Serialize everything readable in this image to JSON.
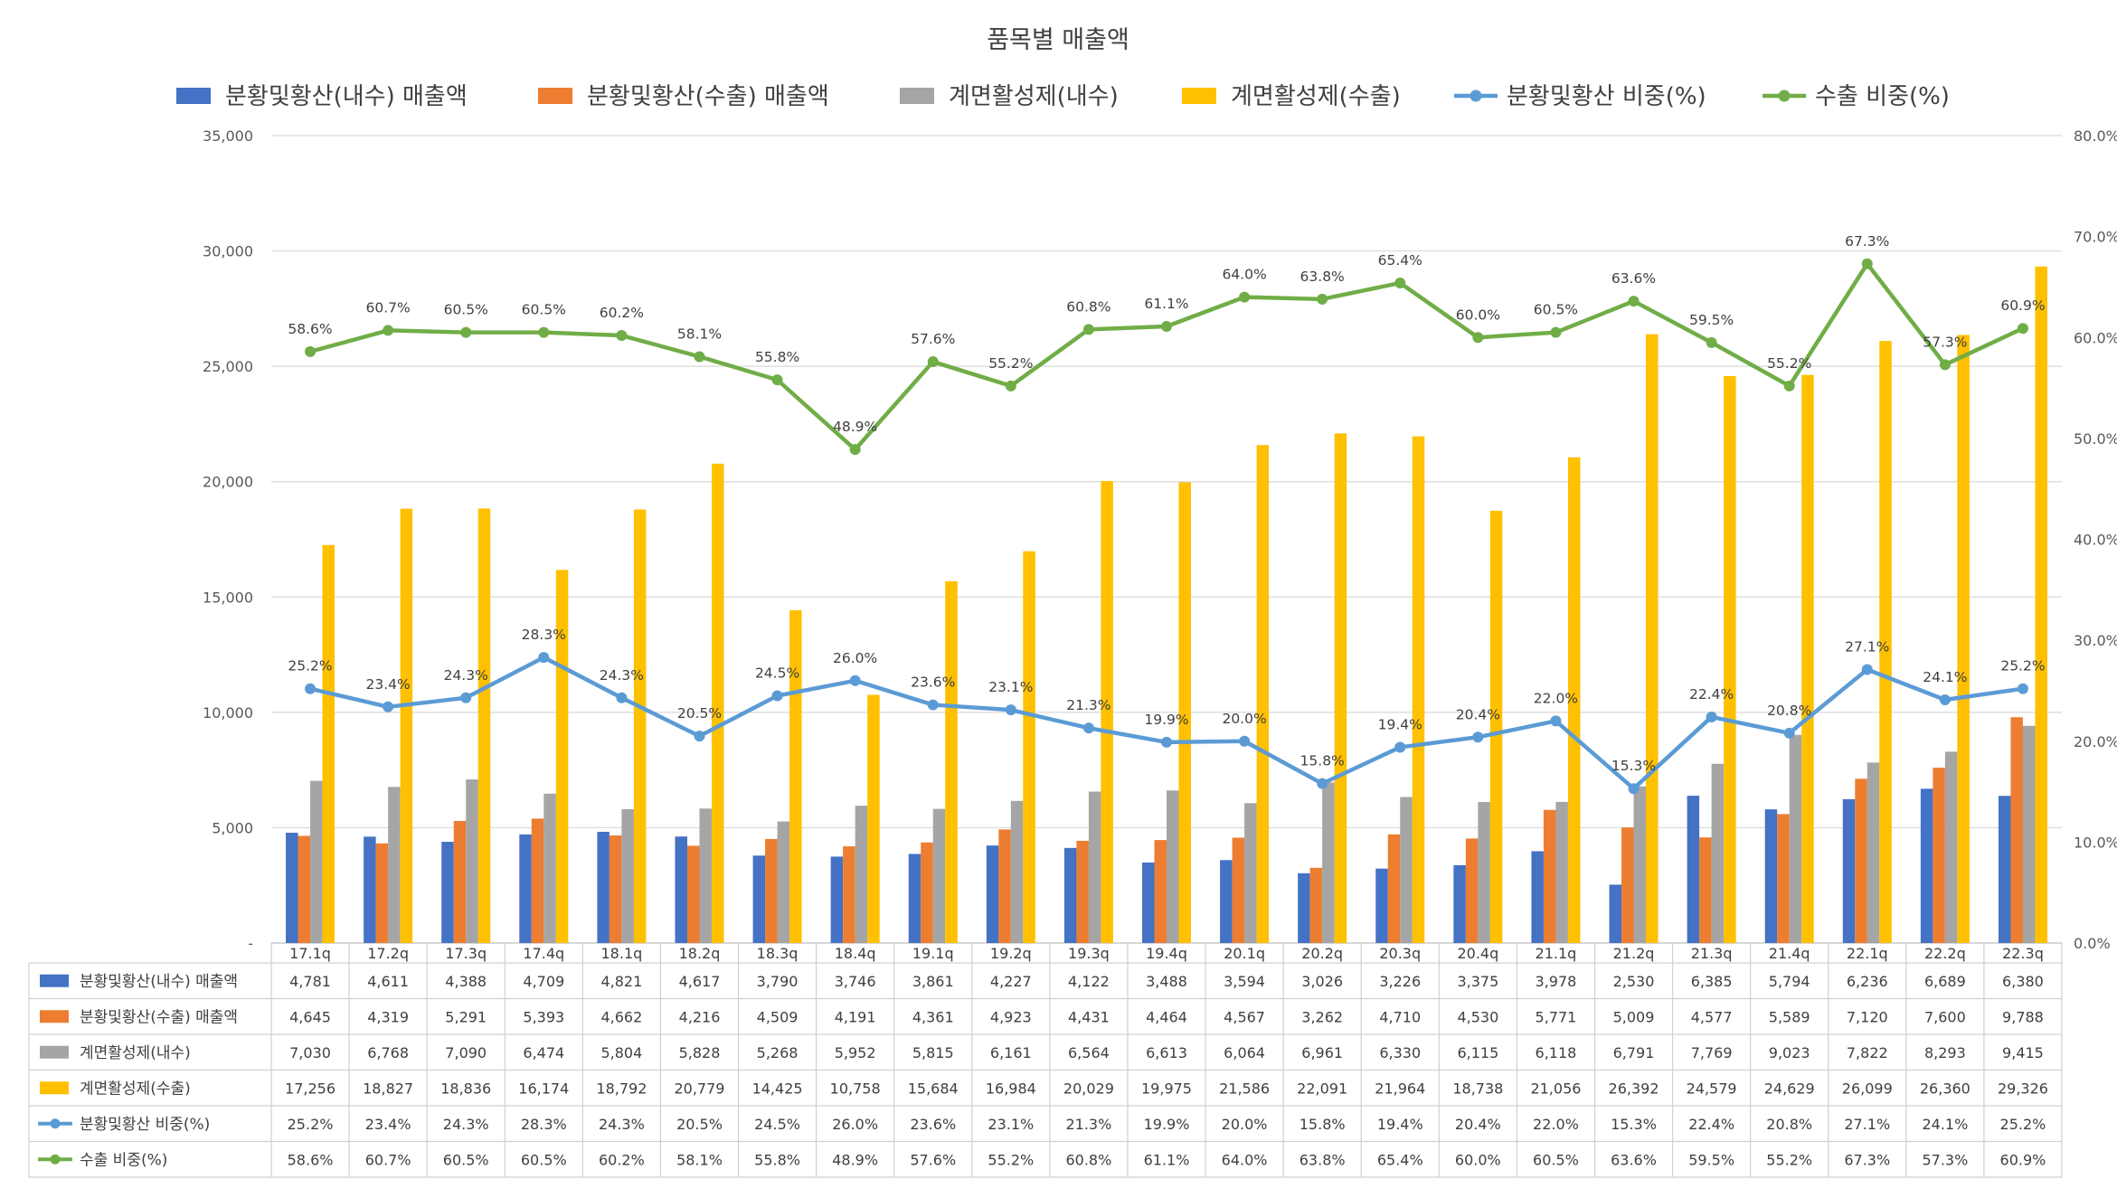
{
  "chart_data": {
    "type": "bar",
    "title": "품목별 매출액",
    "categories": [
      "17.1q",
      "17.2q",
      "17.3q",
      "17.4q",
      "18.1q",
      "18.2q",
      "18.3q",
      "18.4q",
      "19.1q",
      "19.2q",
      "19.3q",
      "19.4q",
      "20.1q",
      "20.2q",
      "20.3q",
      "20.4q",
      "21.1q",
      "21.2q",
      "21.3q",
      "21.4q",
      "22.1q",
      "22.2q",
      "22.3q"
    ],
    "y_left": {
      "min": 0,
      "max": 35000,
      "ticks": [
        0,
        5000,
        10000,
        15000,
        20000,
        25000,
        30000,
        35000
      ],
      "tick_labels": [
        "-",
        "5,000",
        "10,000",
        "15,000",
        "20,000",
        "25,000",
        "30,000",
        "35,000"
      ]
    },
    "y_right": {
      "min": 0,
      "max": 80,
      "ticks": [
        0,
        10,
        20,
        30,
        40,
        50,
        60,
        70,
        80
      ],
      "tick_labels": [
        "0.0%",
        "10.0%",
        "20.0%",
        "30.0%",
        "40.0%",
        "50.0%",
        "60.0%",
        "70.0%",
        "80.0%"
      ]
    },
    "gridlines": true,
    "legend_position": "top",
    "data_table": true,
    "series": [
      {
        "name": "분황및황산(내수) 매출액",
        "legend_label": "분황및황산(내수) 매출액",
        "kind": "bar",
        "axis": "left",
        "color": "#4472C4",
        "values": [
          4781,
          4611,
          4388,
          4709,
          4821,
          4617,
          3790,
          3746,
          3861,
          4227,
          4122,
          3488,
          3594,
          3026,
          3226,
          3375,
          3978,
          2530,
          6385,
          5794,
          6236,
          6689,
          6380
        ],
        "labels": [
          "4,781",
          "4,611",
          "4,388",
          "4,709",
          "4,821",
          "4,617",
          "3,790",
          "3,746",
          "3,861",
          "4,227",
          "4,122",
          "3,488",
          "3,594",
          "3,026",
          "3,226",
          "3,375",
          "3,978",
          "2,530",
          "6,385",
          "5,794",
          "6,236",
          "6,689",
          "6,380"
        ]
      },
      {
        "name": "분황및황산(수출) 매출액",
        "legend_label": "분황및황산(수출) 매출액",
        "kind": "bar",
        "axis": "left",
        "color": "#ED7D31",
        "values": [
          4645,
          4319,
          5291,
          5393,
          4662,
          4216,
          4509,
          4191,
          4361,
          4923,
          4431,
          4464,
          4567,
          3262,
          4710,
          4530,
          5771,
          5009,
          4577,
          5589,
          7120,
          7600,
          9788
        ],
        "labels": [
          "4,645",
          "4,319",
          "5,291",
          "5,393",
          "4,662",
          "4,216",
          "4,509",
          "4,191",
          "4,361",
          "4,923",
          "4,431",
          "4,464",
          "4,567",
          "3,262",
          "4,710",
          "4,530",
          "5,771",
          "5,009",
          "4,577",
          "5,589",
          "7,120",
          "7,600",
          "9,788"
        ]
      },
      {
        "name": "계면활성제(내수)",
        "legend_label": "계면활성제(내수)",
        "kind": "bar",
        "axis": "left",
        "color": "#A5A5A5",
        "values": [
          7030,
          6768,
          7090,
          6474,
          5804,
          5828,
          5268,
          5952,
          5815,
          6161,
          6564,
          6613,
          6064,
          6961,
          6330,
          6115,
          6118,
          6791,
          7769,
          9023,
          7822,
          8293,
          9415
        ],
        "labels": [
          "7,030",
          "6,768",
          "7,090",
          "6,474",
          "5,804",
          "5,828",
          "5,268",
          "5,952",
          "5,815",
          "6,161",
          "6,564",
          "6,613",
          "6,064",
          "6,961",
          "6,330",
          "6,115",
          "6,118",
          "6,791",
          "7,769",
          "9,023",
          "7,822",
          "8,293",
          "9,415"
        ]
      },
      {
        "name": "계면활성제(수출)",
        "legend_label": "계면활성제(수출)",
        "kind": "bar",
        "axis": "left",
        "color": "#FFC000",
        "values": [
          17256,
          18827,
          18836,
          16174,
          18792,
          20779,
          14425,
          10758,
          15684,
          16984,
          20029,
          19975,
          21586,
          22091,
          21964,
          18738,
          21056,
          26392,
          24579,
          24629,
          26099,
          26360,
          29326
        ],
        "labels": [
          "17,256",
          "18,827",
          "18,836",
          "16,174",
          "18,792",
          "20,779",
          "14,425",
          "10,758",
          "15,684",
          "16,984",
          "20,029",
          "19,975",
          "21,586",
          "22,091",
          "21,964",
          "18,738",
          "21,056",
          "26,392",
          "24,579",
          "24,629",
          "26,099",
          "26,360",
          "29,326"
        ]
      },
      {
        "name": "분황및황산 비중(%)",
        "legend_label": "분황및황산 비중(%)",
        "kind": "line",
        "axis": "right",
        "color": "#5B9BD5",
        "values": [
          25.2,
          23.4,
          24.3,
          28.3,
          24.3,
          20.5,
          24.5,
          26.0,
          23.6,
          23.1,
          21.3,
          19.9,
          20.0,
          15.8,
          19.4,
          20.4,
          22.0,
          15.3,
          22.4,
          20.8,
          27.1,
          24.1,
          25.2
        ],
        "labels": [
          "25.2%",
          "23.4%",
          "24.3%",
          "28.3%",
          "24.3%",
          "20.5%",
          "24.5%",
          "26.0%",
          "23.6%",
          "23.1%",
          "21.3%",
          "19.9%",
          "20.0%",
          "15.8%",
          "19.4%",
          "20.4%",
          "22.0%",
          "15.3%",
          "22.4%",
          "20.8%",
          "27.1%",
          "24.1%",
          "25.2%"
        ]
      },
      {
        "name": "수출 비중(%)",
        "legend_label": "수출 비중(%)",
        "kind": "line",
        "axis": "right",
        "color": "#70AD47",
        "values": [
          58.6,
          60.7,
          60.5,
          60.5,
          60.2,
          58.1,
          55.8,
          48.9,
          57.6,
          55.2,
          60.8,
          61.1,
          64.0,
          63.8,
          65.4,
          60.0,
          60.5,
          63.6,
          59.5,
          55.2,
          67.3,
          57.3,
          60.9
        ],
        "labels": [
          "58.6%",
          "60.7%",
          "60.5%",
          "60.5%",
          "60.2%",
          "58.1%",
          "55.8%",
          "48.9%",
          "57.6%",
          "55.2%",
          "60.8%",
          "61.1%",
          "64.0%",
          "63.8%",
          "65.4%",
          "60.0%",
          "60.5%",
          "63.6%",
          "59.5%",
          "55.2%",
          "67.3%",
          "57.3%",
          "60.9%"
        ]
      }
    ]
  }
}
